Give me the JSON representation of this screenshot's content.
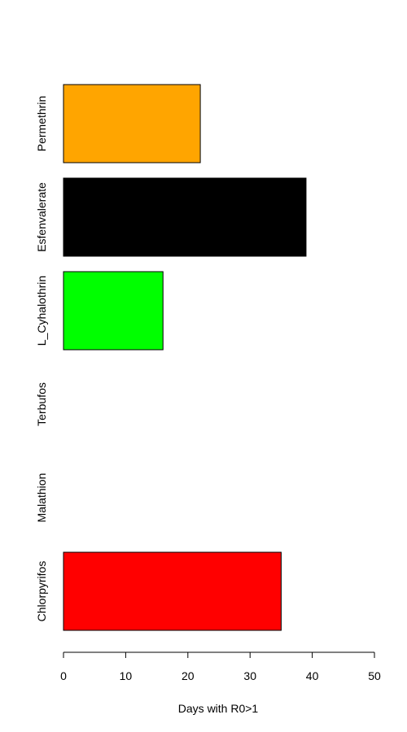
{
  "chart_data": {
    "type": "bar",
    "orientation": "horizontal",
    "categories": [
      "Chlorpyrifos",
      "Malathion",
      "Terbufos",
      "L_Cyhalothrin",
      "Esfenvalerate",
      "Permethrin"
    ],
    "values": [
      35,
      0,
      0,
      16,
      39,
      22
    ],
    "colors": [
      "#ff0000",
      "#ffffff",
      "#ffffff",
      "#00ff00",
      "#000000",
      "#ffa500"
    ],
    "xlabel": "Days with R0>1",
    "xlim": [
      0,
      50
    ],
    "xticks": [
      0,
      10,
      20,
      30,
      40,
      50
    ],
    "grid": false,
    "legend": "none"
  }
}
